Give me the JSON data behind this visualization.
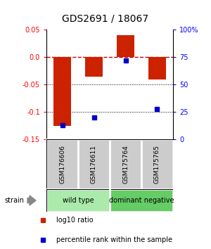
{
  "title": "GDS2691 / 18067",
  "samples": [
    "GSM176606",
    "GSM176611",
    "GSM175764",
    "GSM175765"
  ],
  "log10_ratios": [
    -0.125,
    -0.035,
    0.04,
    -0.04
  ],
  "percentile_ranks": [
    13,
    20,
    72,
    28
  ],
  "ylim": [
    -0.15,
    0.05
  ],
  "yticks_left": [
    -0.15,
    -0.1,
    -0.05,
    0.0,
    0.05
  ],
  "yticks_right": [
    0,
    25,
    50,
    75,
    100
  ],
  "yticks_right_labels": [
    "0",
    "25",
    "50",
    "75",
    "100%"
  ],
  "bar_color": "#cc2200",
  "dot_color": "#0000cc",
  "group_ranges": [
    [
      0,
      1,
      "wild type",
      "#aaeaaa"
    ],
    [
      2,
      3,
      "dominant negative",
      "#66cc66"
    ]
  ],
  "legend_items": [
    {
      "color": "#cc2200",
      "marker": "s",
      "label": "log10 ratio"
    },
    {
      "color": "#0000cc",
      "marker": "s",
      "label": "percentile rank within the sample"
    }
  ],
  "strain_label": "strain",
  "bar_width": 0.55,
  "sample_box_color": "#cccccc",
  "zero_line_color": "#cc0000",
  "dotted_line_color": "black"
}
